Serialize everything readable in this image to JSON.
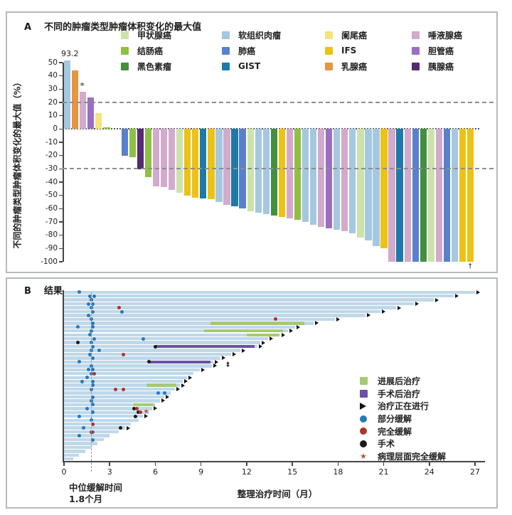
{
  "panel_a": {
    "label": "A",
    "title": "不同的肿瘤类型肿瘤体积变化的最大值",
    "ylabel": "不同的肿瘤类型肿瘤体积变化的最大值（%）",
    "legend": [
      {
        "label": "甲状腺癌",
        "type": "thyroid"
      },
      {
        "label": "结肠癌",
        "type": "colon"
      },
      {
        "label": "黑色素瘤",
        "type": "melanoma"
      },
      {
        "label": "软组织肉瘤",
        "type": "sts"
      },
      {
        "label": "肺癌",
        "type": "lung"
      },
      {
        "label": "GIST",
        "type": "gist"
      },
      {
        "label": "阑尾癌",
        "type": "appendix"
      },
      {
        "label": "IFS",
        "type": "ifs"
      },
      {
        "label": "乳腺癌",
        "type": "breast"
      },
      {
        "label": "唾液腺癌",
        "type": "salivary"
      },
      {
        "label": "胆管癌",
        "type": "bileduct"
      },
      {
        "label": "胰腺癌",
        "type": "pancreatic"
      }
    ]
  },
  "panel_b": {
    "label": "B",
    "title": "结果",
    "xlabel": "整理治疗时间（月）",
    "median_label_line1": "中位缓解时间",
    "median_label_line2": "1.8个月",
    "legend": [
      {
        "label": "进展后治疗",
        "swatch": "green-square"
      },
      {
        "label": "手术后治疗",
        "swatch": "purple-square"
      },
      {
        "label": "治疗正在进行",
        "swatch": "arrow"
      },
      {
        "label": "部分缓解",
        "swatch": "blue-dot"
      },
      {
        "label": "完全缓解",
        "swatch": "red-dot"
      },
      {
        "label": "手术",
        "swatch": "black-dot"
      },
      {
        "label": "病理层面完全缓解",
        "swatch": "star"
      }
    ]
  },
  "colors": {
    "thyroid": "#cde2ab",
    "colon": "#8fc043",
    "melanoma": "#42903e",
    "sts": "#a5c8e1",
    "lung": "#5981cb",
    "gist": "#1d7aa8",
    "appendix": "#f7e27c",
    "ifs": "#edc215",
    "breast": "#e89440",
    "salivary": "#d2aacc",
    "bileduct": "#9a6fc2",
    "pancreatic": "#542a70",
    "swim_bar": "#bfd8ea",
    "progression_green": "#a6c973",
    "surgery_purple": "#6a52a4",
    "partial_blue": "#2878bd",
    "complete_red": "#ac352c",
    "surgery_black": "#1b1b1b",
    "star_red": "#c0503c",
    "axis": "#444444",
    "refline": "#8a8f93"
  },
  "chart_data": [
    {
      "type": "bar",
      "title": "不同的肿瘤类型肿瘤体积变化的最大值",
      "ylabel": "不同的肿瘤类型肿瘤体积变化的最大值（%）",
      "ylim": [
        -100,
        50
      ],
      "y_ticks": [
        50,
        40,
        30,
        20,
        10,
        0,
        -10,
        -20,
        -30,
        -40,
        -50,
        -60,
        -70,
        -80,
        -90,
        -100
      ],
      "ref_lines": [
        20,
        -30
      ],
      "gap_after_index": 5,
      "bars": [
        {
          "value": 93.2,
          "draw": 51.5,
          "type": "sts",
          "label": "93.2"
        },
        {
          "value": 44,
          "type": "breast"
        },
        {
          "value": 28,
          "type": "salivary",
          "note": "*"
        },
        {
          "value": 24,
          "type": "bileduct"
        },
        {
          "value": 12,
          "type": "appendix"
        },
        {
          "value": 1,
          "type": "colon"
        },
        {
          "value": -20,
          "type": "lung"
        },
        {
          "value": -21.5,
          "type": "colon"
        },
        {
          "value": -30.5,
          "type": "pancreatic"
        },
        {
          "value": -36,
          "type": "colon"
        },
        {
          "value": -43,
          "type": "salivary"
        },
        {
          "value": -43.5,
          "type": "salivary"
        },
        {
          "value": -46,
          "type": "salivary"
        },
        {
          "value": -48,
          "type": "thyroid"
        },
        {
          "value": -50,
          "type": "ifs"
        },
        {
          "value": -52,
          "type": "ifs"
        },
        {
          "value": -52.5,
          "type": "gist"
        },
        {
          "value": -53,
          "type": "ifs"
        },
        {
          "value": -55,
          "type": "sts"
        },
        {
          "value": -57,
          "type": "salivary"
        },
        {
          "value": -58,
          "type": "gist"
        },
        {
          "value": -60,
          "type": "lung"
        },
        {
          "value": -62,
          "type": "thyroid"
        },
        {
          "value": -63,
          "type": "sts"
        },
        {
          "value": -64,
          "type": "sts"
        },
        {
          "value": -65,
          "type": "melanoma"
        },
        {
          "value": -66,
          "type": "ifs"
        },
        {
          "value": -67.5,
          "type": "salivary"
        },
        {
          "value": -68.5,
          "type": "colon"
        },
        {
          "value": -70,
          "type": "sts"
        },
        {
          "value": -72,
          "type": "sts"
        },
        {
          "value": -73.5,
          "type": "salivary"
        },
        {
          "value": -75,
          "type": "bileduct"
        },
        {
          "value": -76,
          "type": "sts"
        },
        {
          "value": -77,
          "type": "salivary"
        },
        {
          "value": -78.5,
          "type": "sts"
        },
        {
          "value": -82,
          "type": "thyroid"
        },
        {
          "value": -84,
          "type": "sts"
        },
        {
          "value": -88,
          "type": "sts"
        },
        {
          "value": -90,
          "type": "ifs"
        },
        {
          "value": -100,
          "type": "salivary"
        },
        {
          "value": -100,
          "type": "gist"
        },
        {
          "value": -100,
          "type": "salivary"
        },
        {
          "value": -100,
          "type": "lung"
        },
        {
          "value": -100,
          "type": "melanoma"
        },
        {
          "value": -100,
          "type": "thyroid"
        },
        {
          "value": -100,
          "type": "salivary"
        },
        {
          "value": -100,
          "type": "lung"
        },
        {
          "value": -100,
          "type": "sts"
        },
        {
          "value": -100,
          "type": "ifs"
        },
        {
          "value": -100,
          "type": "ifs",
          "note": "†"
        }
      ]
    },
    {
      "type": "swimmer",
      "title": "结果",
      "xlabel": "整理治疗时间（月）",
      "xlim": [
        0,
        27
      ],
      "x_ticks": [
        0,
        3,
        6,
        9,
        12,
        15,
        18,
        21,
        24,
        27
      ],
      "median_response_months": 1.8,
      "marker_types": {
        "b": "部分缓解",
        "r": "完全缓解",
        "k": "手术",
        "s": "病理层面完全缓解",
        "d": "备注符号",
        "arrow": "治疗正在进行"
      },
      "rows": [
        {
          "len": 27.0,
          "arrow": true,
          "markers": [
            [
              "b",
              1.0
            ]
          ]
        },
        {
          "len": 25.6,
          "arrow": true,
          "markers": [
            [
              "b",
              1.7
            ],
            [
              "b",
              2.0
            ]
          ]
        },
        {
          "len": 24.3,
          "arrow": true,
          "markers": [
            [
              "b",
              1.8
            ]
          ]
        },
        {
          "len": 23.0,
          "arrow": true,
          "markers": [
            [
              "b",
              1.6
            ],
            [
              "b",
              1.9
            ]
          ]
        },
        {
          "len": 21.8,
          "arrow": true,
          "markers": [
            [
              "b",
              1.8
            ],
            [
              "r",
              3.6
            ]
          ]
        },
        {
          "len": 20.8,
          "arrow": true,
          "markers": [
            [
              "b",
              1.9
            ],
            [
              "b",
              3.8
            ]
          ]
        },
        {
          "len": 19.8,
          "arrow": true,
          "markers": [
            [
              "b",
              1.6
            ]
          ]
        },
        {
          "len": 17.8,
          "arrow": true,
          "markers": [
            [
              "b",
              1.8
            ],
            [
              "r",
              13.9
            ]
          ]
        },
        {
          "len": 16.4,
          "arrow": true,
          "green": [
            9.6,
            15.8
          ],
          "markers": [
            [
              "b",
              1.9
            ]
          ]
        },
        {
          "len": 15.2,
          "arrow": true,
          "markers": [
            [
              "b",
              0.9
            ],
            [
              "b",
              1.9
            ]
          ]
        },
        {
          "len": 14.7,
          "arrow": true,
          "green": [
            9.2,
            14.4
          ],
          "markers": [
            [
              "b",
              1.8
            ]
          ]
        },
        {
          "len": 14.2,
          "arrow": true,
          "green": [
            12.0,
            14.1
          ],
          "markers": [
            [
              "b",
              1.7
            ]
          ]
        },
        {
          "len": 13.4,
          "arrow": true,
          "markers": [
            [
              "b",
              2.0
            ],
            [
              "b",
              5.2
            ]
          ]
        },
        {
          "len": 12.9,
          "arrow": true,
          "markers": [
            [
              "k",
              0.9
            ],
            [
              "b",
              1.8
            ]
          ]
        },
        {
          "len": 12.7,
          "arrow": true,
          "purple": [
            6.0,
            12.5
          ],
          "markers": [
            [
              "k",
              6.0
            ],
            [
              "b",
              1.9
            ]
          ]
        },
        {
          "len": 11.6,
          "arrow": true,
          "markers": [
            [
              "b",
              1.8
            ],
            [
              "b",
              2.3
            ]
          ]
        },
        {
          "len": 11.0,
          "arrow": true,
          "markers": [
            [
              "b",
              1.7
            ],
            [
              "r",
              3.9
            ]
          ]
        },
        {
          "len": 10.3,
          "arrow": true,
          "markers": [
            [
              "b",
              1.9
            ]
          ]
        },
        {
          "len": 9.8,
          "arrow": true,
          "purple": [
            5.6,
            9.6
          ],
          "markers": [
            [
              "k",
              5.6
            ],
            [
              "b",
              1.0
            ]
          ]
        },
        {
          "len": 9.7,
          "arrow": true,
          "markers": [
            [
              "b",
              1.8
            ],
            [
              "d",
              10.8
            ]
          ]
        },
        {
          "len": 8.9,
          "arrow": true,
          "markers": [
            [
              "b",
              1.6
            ],
            [
              "b",
              1.9
            ]
          ]
        },
        {
          "len": 8.5,
          "arrow": false,
          "markers": [
            [
              "b",
              1.8
            ],
            [
              "r",
              2.0
            ]
          ]
        },
        {
          "len": 8.1,
          "arrow": true,
          "markers": [
            [
              "b",
              1.5
            ]
          ]
        },
        {
          "len": 7.8,
          "arrow": true,
          "markers": [
            [
              "b",
              1.2
            ],
            [
              "b",
              1.9
            ]
          ]
        },
        {
          "len": 7.6,
          "arrow": true,
          "green": [
            5.4,
            7.4
          ],
          "markers": [
            [
              "b",
              1.9
            ]
          ]
        },
        {
          "len": 7.3,
          "arrow": true,
          "markers": [
            [
              "b",
              1.8
            ],
            [
              "r",
              3.4
            ],
            [
              "r",
              3.9
            ]
          ]
        },
        {
          "len": 7.0,
          "arrow": false,
          "markers": [
            [
              "b",
              6.2
            ],
            [
              "b",
              6.6
            ]
          ]
        },
        {
          "len": 6.6,
          "arrow": true,
          "markers": [
            [
              "b",
              1.9
            ]
          ]
        },
        {
          "len": 6.3,
          "arrow": true,
          "markers": [
            [
              "b",
              1.8
            ]
          ]
        },
        {
          "len": 6.0,
          "arrow": false,
          "green": [
            4.6,
            5.9
          ],
          "markers": [
            [
              "b",
              1.9
            ]
          ]
        },
        {
          "len": 5.8,
          "arrow": true,
          "markers": [
            [
              "b",
              1.5
            ],
            [
              "k",
              4.6
            ],
            [
              "r",
              4.8
            ]
          ]
        },
        {
          "len": 5.6,
          "arrow": false,
          "markers": [
            [
              "b",
              1.9
            ],
            [
              "k",
              4.9
            ],
            [
              "r",
              5.0
            ],
            [
              "s",
              5.4
            ]
          ]
        },
        {
          "len": 5.2,
          "arrow": true,
          "markers": [
            [
              "b",
              1.0
            ],
            [
              "k",
              4.7
            ]
          ]
        },
        {
          "len": 4.9,
          "arrow": false,
          "markers": [
            [
              "b",
              1.8
            ]
          ]
        },
        {
          "len": 4.4,
          "arrow": false,
          "markers": [
            [
              "b",
              1.9
            ],
            [
              "r",
              1.9
            ]
          ]
        },
        {
          "len": 4.0,
          "arrow": true,
          "markers": [
            [
              "b",
              1.3
            ],
            [
              "k",
              3.7
            ]
          ]
        },
        {
          "len": 3.6,
          "arrow": false,
          "markers": [
            [
              "b",
              1.9
            ],
            [
              "r",
              1.8
            ]
          ]
        },
        {
          "len": 3.0,
          "arrow": false,
          "markers": [
            [
              "b",
              1.0
            ]
          ]
        },
        {
          "len": 2.6,
          "arrow": false,
          "markers": [
            [
              "b",
              1.9
            ]
          ]
        },
        {
          "len": 2.2,
          "arrow": false,
          "markers": []
        },
        {
          "len": 1.8,
          "arrow": false,
          "markers": []
        },
        {
          "len": 1.4,
          "arrow": false,
          "markers": []
        },
        {
          "len": 1.0,
          "arrow": false,
          "markers": []
        },
        {
          "len": 0.6,
          "arrow": false,
          "markers": []
        }
      ]
    }
  ]
}
